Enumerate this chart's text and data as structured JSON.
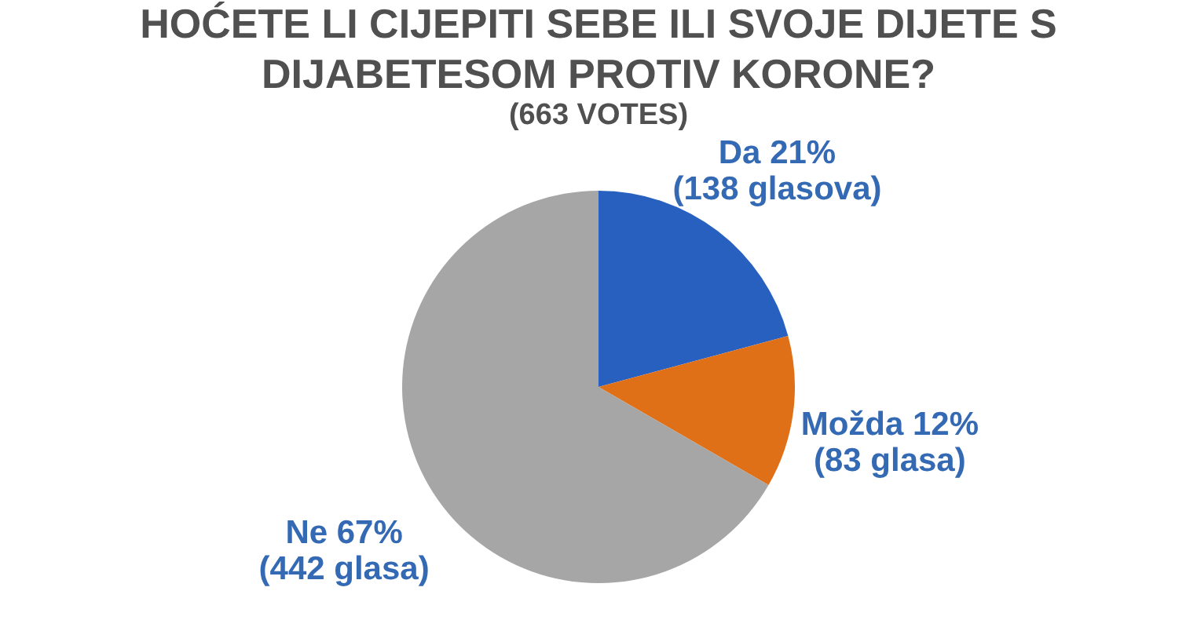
{
  "chart_data": {
    "type": "pie",
    "title": "HOĆETE LI CIJEPITI SEBE ILI SVOJE DIJETE S DIJABETESOM PROTIV KORONE?",
    "subtitle": "(663 VOTES)",
    "categories": [
      "Da",
      "Možda",
      "Ne"
    ],
    "values": [
      138,
      83,
      442
    ],
    "colors": [
      "#2860c0",
      "#e07018",
      "#a6a6a6"
    ],
    "value_labels": [
      "21% (138 glasova)",
      "12% (83 glasa)",
      "67% (442 glasa)"
    ]
  }
}
